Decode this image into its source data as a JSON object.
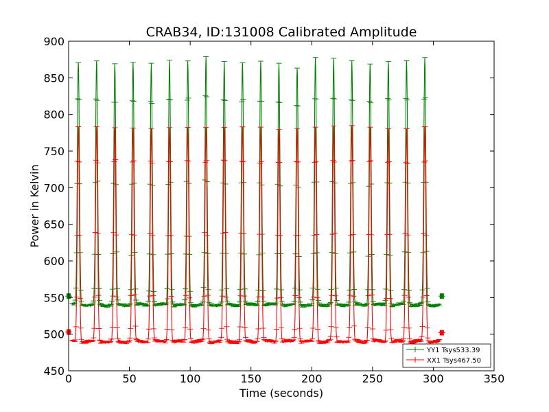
{
  "chart_data": {
    "type": "line",
    "title": "CRAB34, ID:131008 Calibrated Amplitude",
    "xlabel": "Time (seconds)",
    "ylabel": "Power in Kelvin",
    "xlim": [
      0,
      350
    ],
    "ylim": [
      450,
      900
    ],
    "x_ticks": [
      0,
      50,
      100,
      150,
      200,
      250,
      300,
      350
    ],
    "y_ticks": [
      450,
      500,
      550,
      600,
      650,
      700,
      750,
      800,
      850,
      900
    ],
    "grid": false,
    "legend_position": "lower-right",
    "peak_times": [
      8,
      23,
      38,
      53,
      68,
      83,
      98,
      113,
      128,
      143,
      158,
      173,
      188,
      203,
      218,
      233,
      248,
      263,
      278,
      293
    ],
    "series": [
      {
        "name": "YY1 Tsys533.39",
        "color": "#008000",
        "baseline": 540,
        "peaks": [
          872,
          872,
          869,
          871,
          870,
          873,
          874,
          876,
          871,
          872,
          872,
          869,
          865,
          875,
          874,
          872,
          870,
          875,
          873,
          875
        ],
        "endpoints": [
          [
            0,
            552
          ],
          [
            307,
            552
          ]
        ]
      },
      {
        "name": "XX1 Tsys467.50",
        "color": "#ff0000",
        "baseline": 490,
        "peaks": [
          783,
          782,
          782,
          782,
          782,
          782,
          782,
          782,
          782,
          782,
          782,
          782,
          782,
          782,
          782,
          782,
          782,
          782,
          782,
          782
        ],
        "endpoints": [
          [
            0,
            503
          ],
          [
            307,
            502
          ]
        ]
      }
    ]
  }
}
